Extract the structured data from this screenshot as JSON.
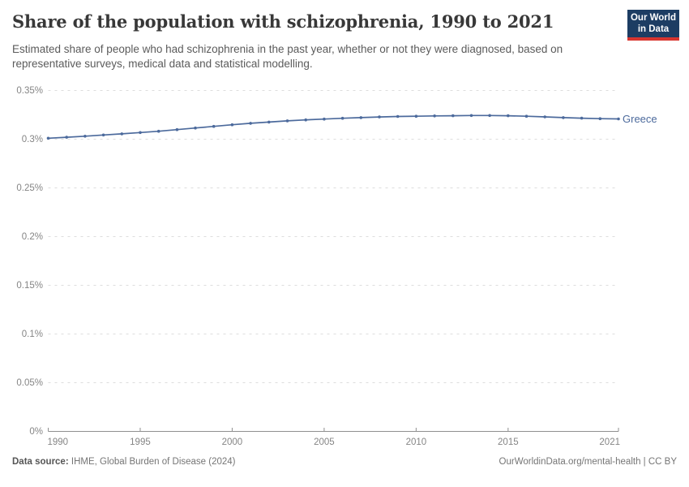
{
  "header": {
    "title": "Share of the population with schizophrenia, 1990 to 2021",
    "subtitle": "Estimated share of people who had schizophrenia in the past year, whether or not they were diagnosed, based on representative surveys, medical data and statistical modelling.",
    "logo": {
      "line1": "Our World",
      "line2": "in Data",
      "bg_color": "#1d3d63",
      "accent_color": "#d8352f"
    }
  },
  "chart_data": {
    "type": "line",
    "title": "Share of the population with schizophrenia, 1990 to 2021",
    "x": [
      1990,
      1991,
      1992,
      1993,
      1994,
      1995,
      1996,
      1997,
      1998,
      1999,
      2000,
      2001,
      2002,
      2003,
      2004,
      2005,
      2006,
      2007,
      2008,
      2009,
      2010,
      2011,
      2012,
      2013,
      2014,
      2015,
      2016,
      2017,
      2018,
      2019,
      2020,
      2021
    ],
    "series": [
      {
        "name": "Greece",
        "color": "#4c6a9c",
        "values": [
          0.301,
          0.302,
          0.3031,
          0.3043,
          0.3055,
          0.3068,
          0.3082,
          0.3098,
          0.3115,
          0.3132,
          0.3148,
          0.3163,
          0.3176,
          0.3188,
          0.3198,
          0.3207,
          0.3215,
          0.3222,
          0.3228,
          0.3233,
          0.3236,
          0.3239,
          0.3241,
          0.3243,
          0.3243,
          0.3241,
          0.3236,
          0.3229,
          0.3222,
          0.3216,
          0.3211,
          0.3208
        ]
      }
    ],
    "unit": "%",
    "ylim": [
      0,
      0.35
    ],
    "y_ticks": [
      {
        "value": 0,
        "label": "0%"
      },
      {
        "value": 0.05,
        "label": "0.05%"
      },
      {
        "value": 0.1,
        "label": "0.1%"
      },
      {
        "value": 0.15,
        "label": "0.15%"
      },
      {
        "value": 0.2,
        "label": "0.2%"
      },
      {
        "value": 0.25,
        "label": "0.25%"
      },
      {
        "value": 0.3,
        "label": "0.3%"
      },
      {
        "value": 0.35,
        "label": "0.35%"
      }
    ],
    "x_ticks": [
      1990,
      1995,
      2000,
      2005,
      2010,
      2015,
      2021
    ],
    "grid": "horizontal-dashed",
    "legend_position": "line-end-label",
    "colors": {
      "gridline": "#dddddd",
      "axis": "#8f8f8f",
      "tick_text": "#858585"
    }
  },
  "footer": {
    "datasource_label": "Data source:",
    "datasource_value": "IHME, Global Burden of Disease (2024)",
    "credit": "OurWorldinData.org/mental-health | CC BY"
  }
}
